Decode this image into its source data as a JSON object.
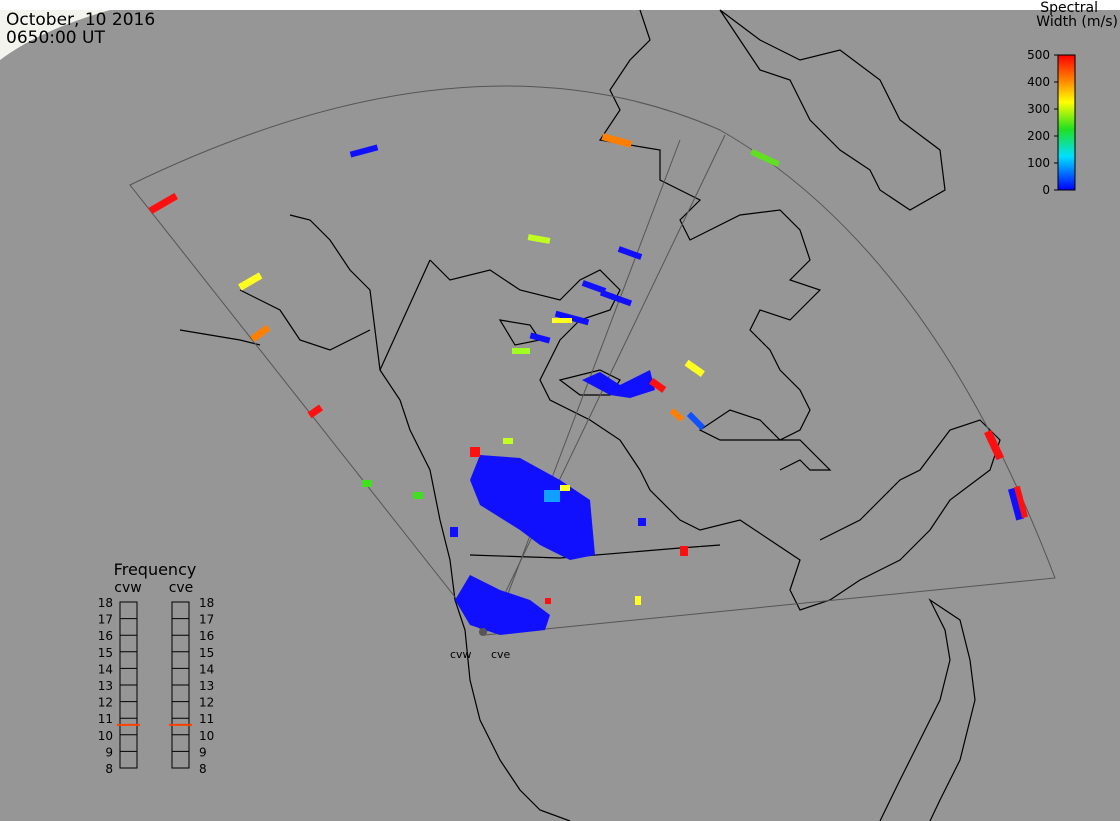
{
  "header": {
    "date": "October, 10 2016",
    "time": "0650:00 UT"
  },
  "colorbar": {
    "title": [
      "Spectral",
      "Width (m/s)"
    ],
    "range": [
      0,
      500
    ],
    "ticks": [
      0,
      100,
      200,
      300,
      400,
      500
    ]
  },
  "frequency": {
    "title": "Frequency",
    "range": [
      8,
      18
    ],
    "ticks": [
      8,
      9,
      10,
      11,
      12,
      13,
      14,
      15,
      16,
      17,
      18
    ],
    "radars": [
      {
        "name": "cvw",
        "value": 10.6
      },
      {
        "name": "cve",
        "value": 10.6
      }
    ]
  },
  "radar_labels": [
    "cvw",
    "cve"
  ]
}
